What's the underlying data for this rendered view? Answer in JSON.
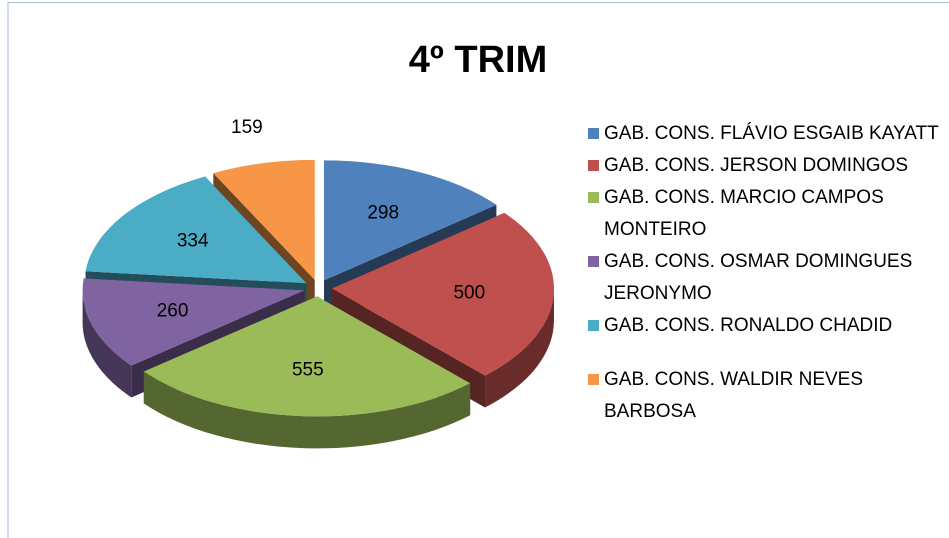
{
  "chart_data": {
    "type": "pie3d",
    "title": "4º TRIM",
    "categories": [
      "GAB. CONS. FLÁVIO ESGAIB KAYATT",
      "GAB. CONS. JERSON DOMINGOS",
      "GAB. CONS. MARCIO CAMPOS MONTEIRO",
      "GAB. CONS. OSMAR DOMINGUES JERONYMO",
      "GAB. CONS. RONALDO CHADID",
      "GAB. CONS. WALDIR NEVES BARBOSA"
    ],
    "values": [
      298,
      500,
      555,
      260,
      334,
      159
    ],
    "colors": [
      "#4f81bd",
      "#c0504d",
      "#9bbb59",
      "#8064a2",
      "#4bacc6",
      "#f79646"
    ],
    "legend": "right"
  }
}
